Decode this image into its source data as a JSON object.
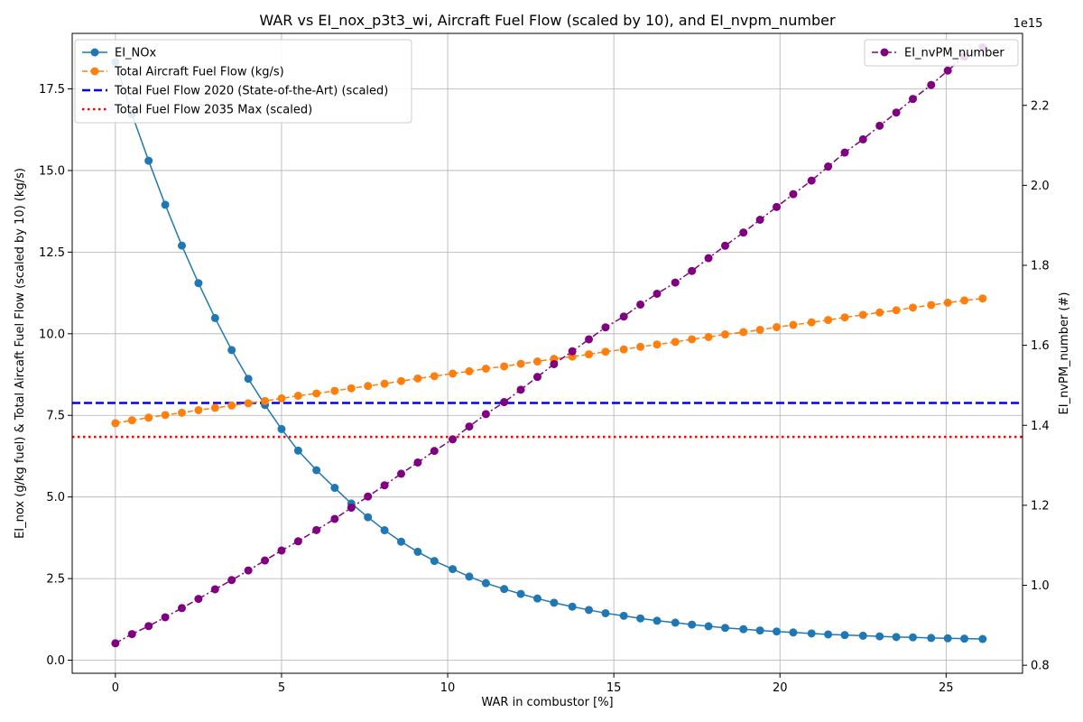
{
  "chart_data": {
    "type": "line",
    "title": "WAR vs EI_nox_p3t3_wi, Aircraft Fuel Flow (scaled by 10), and EI_nvpm_number",
    "xlabel": "WAR in combustor [%]",
    "ylabel_left": "EI_nox (g/kg fuel) & Total Aircaft Fuel Flow (scaled by 10) (kg/s)",
    "ylabel_right": "EI_nvPM_number (#)",
    "right_offset_text": "1e15",
    "xlim": [
      -1.3,
      27.3
    ],
    "ylim_left": [
      -0.4,
      19.2
    ],
    "ylim_right": [
      0.78,
      2.38
    ],
    "x_ticks": [
      0,
      5,
      10,
      15,
      20,
      25
    ],
    "y_left_ticks": [
      "0.0",
      "2.5",
      "5.0",
      "7.5",
      "10.0",
      "12.5",
      "15.0",
      "17.5"
    ],
    "y_right_ticks": [
      "0.8",
      "1.0",
      "1.2",
      "1.4",
      "1.6",
      "1.8",
      "2.0",
      "2.2"
    ],
    "grid": true,
    "legend_left_placement": "top-left",
    "legend_right_placement": "top-right",
    "x": [
      0,
      0.5,
      1.0,
      1.5,
      2.0,
      2.5,
      3.0,
      3.5,
      4.0,
      4.5,
      5.0,
      5.5,
      6.05,
      6.6,
      7.1,
      7.6,
      8.1,
      8.6,
      9.1,
      9.6,
      10.15,
      10.65,
      11.15,
      11.7,
      12.2,
      12.7,
      13.2,
      13.75,
      14.25,
      14.75,
      15.3,
      15.8,
      16.3,
      16.85,
      17.35,
      17.85,
      18.35,
      18.9,
      19.4,
      19.9,
      20.4,
      20.95,
      21.45,
      21.95,
      22.5,
      23.0,
      23.5,
      24.0,
      24.55,
      25.05,
      25.55,
      26.1
    ],
    "series": [
      {
        "name": "EI_NOx",
        "axis": "left",
        "color": "#1f77b4",
        "linestyle": "solid",
        "values": [
          18.32,
          16.72,
          15.3,
          13.95,
          12.7,
          11.55,
          10.48,
          9.5,
          8.62,
          7.82,
          7.08,
          6.42,
          5.82,
          5.28,
          4.8,
          4.38,
          3.98,
          3.63,
          3.32,
          3.04,
          2.79,
          2.56,
          2.36,
          2.18,
          2.03,
          1.89,
          1.76,
          1.64,
          1.54,
          1.44,
          1.36,
          1.28,
          1.21,
          1.15,
          1.09,
          1.04,
          0.99,
          0.95,
          0.91,
          0.88,
          0.85,
          0.82,
          0.79,
          0.77,
          0.75,
          0.73,
          0.71,
          0.7,
          0.68,
          0.67,
          0.66,
          0.65
        ]
      },
      {
        "name": "Total Aircraft Fuel Flow (kg/s)",
        "axis": "left",
        "color": "#ff7f0e",
        "linestyle": "dashed",
        "values": [
          7.26,
          7.35,
          7.43,
          7.51,
          7.58,
          7.66,
          7.73,
          7.8,
          7.87,
          7.94,
          8.02,
          8.1,
          8.17,
          8.25,
          8.33,
          8.4,
          8.47,
          8.55,
          8.63,
          8.7,
          8.78,
          8.85,
          8.93,
          9.0,
          9.08,
          9.15,
          9.23,
          9.3,
          9.37,
          9.45,
          9.52,
          9.6,
          9.67,
          9.75,
          9.83,
          9.9,
          9.98,
          10.05,
          10.12,
          10.2,
          10.27,
          10.35,
          10.42,
          10.5,
          10.58,
          10.65,
          10.72,
          10.8,
          10.88,
          10.95,
          11.02,
          11.08
        ]
      },
      {
        "name": "EI_nvPM_number",
        "axis": "right",
        "color": "#800080",
        "linestyle": "dashdot",
        "values": [
          0.855,
          0.878,
          0.898,
          0.92,
          0.943,
          0.966,
          0.99,
          1.013,
          1.037,
          1.062,
          1.087,
          1.11,
          1.138,
          1.166,
          1.194,
          1.222,
          1.25,
          1.279,
          1.307,
          1.336,
          1.365,
          1.397,
          1.428,
          1.458,
          1.489,
          1.521,
          1.553,
          1.585,
          1.615,
          1.645,
          1.672,
          1.702,
          1.729,
          1.757,
          1.786,
          1.818,
          1.849,
          1.882,
          1.914,
          1.946,
          1.978,
          2.012,
          2.047,
          2.082,
          2.115,
          2.149,
          2.182,
          2.216,
          2.251,
          2.287,
          2.322,
          2.345
        ]
      }
    ],
    "reference_lines": [
      {
        "name": "Total Fuel Flow 2020 (State-of-the-Art) (scaled)",
        "axis": "left",
        "value": 7.88,
        "color": "#0000ff",
        "linestyle": "dashed"
      },
      {
        "name": "Total Fuel Flow 2035 Max (scaled)",
        "axis": "left",
        "value": 6.84,
        "color": "#ff0000",
        "linestyle": "dotted"
      }
    ]
  }
}
